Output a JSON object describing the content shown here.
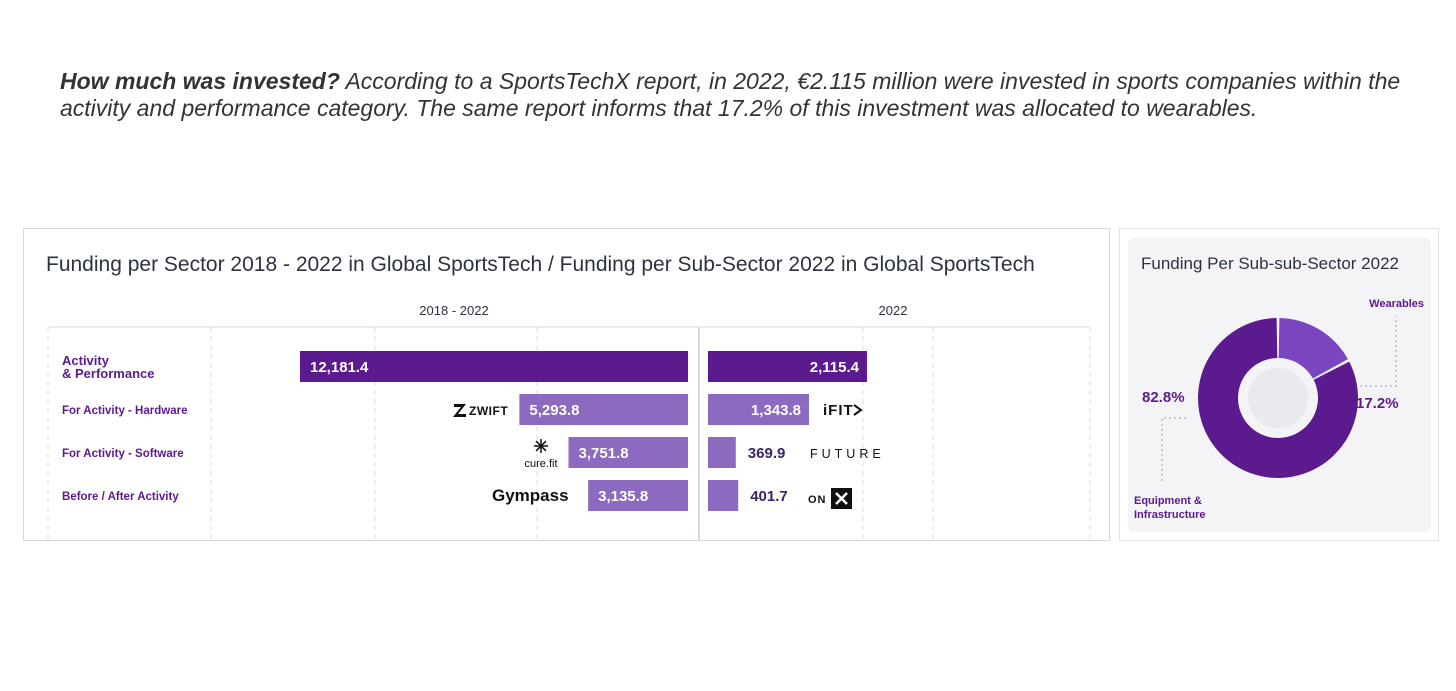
{
  "intro": {
    "lead": "How much was invested?",
    "body": "According to a SportsTechX report, in 2022, €2.115 million were invested in sports companies within the activity and performance category. The same report informs that 17.2% of this investment was allocated to wearables."
  },
  "chart_data": [
    {
      "type": "bar",
      "title": "Funding per Sector 2018 - 2022 in Global SportsTech   /   Funding per Sub-Sector 2022 in Global SportsTech",
      "categories": [
        "Activity\n& Performance",
        "For Activity - Hardware",
        "For Activity - Software",
        "Before / After Activity"
      ],
      "series": [
        {
          "name": "2018 - 2022",
          "values": [
            12181.4,
            5293.8,
            3751.8,
            3135.8
          ],
          "labels": [
            "12,181.4",
            "5,293.8",
            "3,751.8",
            "3,135.8"
          ]
        },
        {
          "name": "2022",
          "values": [
            2115.4,
            1343.8,
            369.9,
            401.7
          ],
          "labels": [
            "2,115.4",
            "1,343.8",
            "369.9",
            "401.7"
          ]
        }
      ],
      "brands_left": [
        "",
        "ZWIFT",
        "cure.fit",
        "Gympass"
      ],
      "brands_right": [
        "",
        "iFIT",
        "FUTURE",
        "ON"
      ],
      "colors": {
        "main": "#5b1a8e",
        "sub": "#8c6ac0",
        "category_text": "#5b1a8e",
        "grid": "#d9dce6"
      }
    },
    {
      "type": "pie",
      "title": "Funding Per Sub-sub-Sector 2022",
      "labels": [
        "Wearables",
        "Equipment & Infrastructure"
      ],
      "values": [
        17.2,
        82.8
      ],
      "value_labels": [
        "17.2%",
        "82.8%"
      ],
      "colors": [
        "#7a46c0",
        "#5b1a8e"
      ]
    }
  ]
}
